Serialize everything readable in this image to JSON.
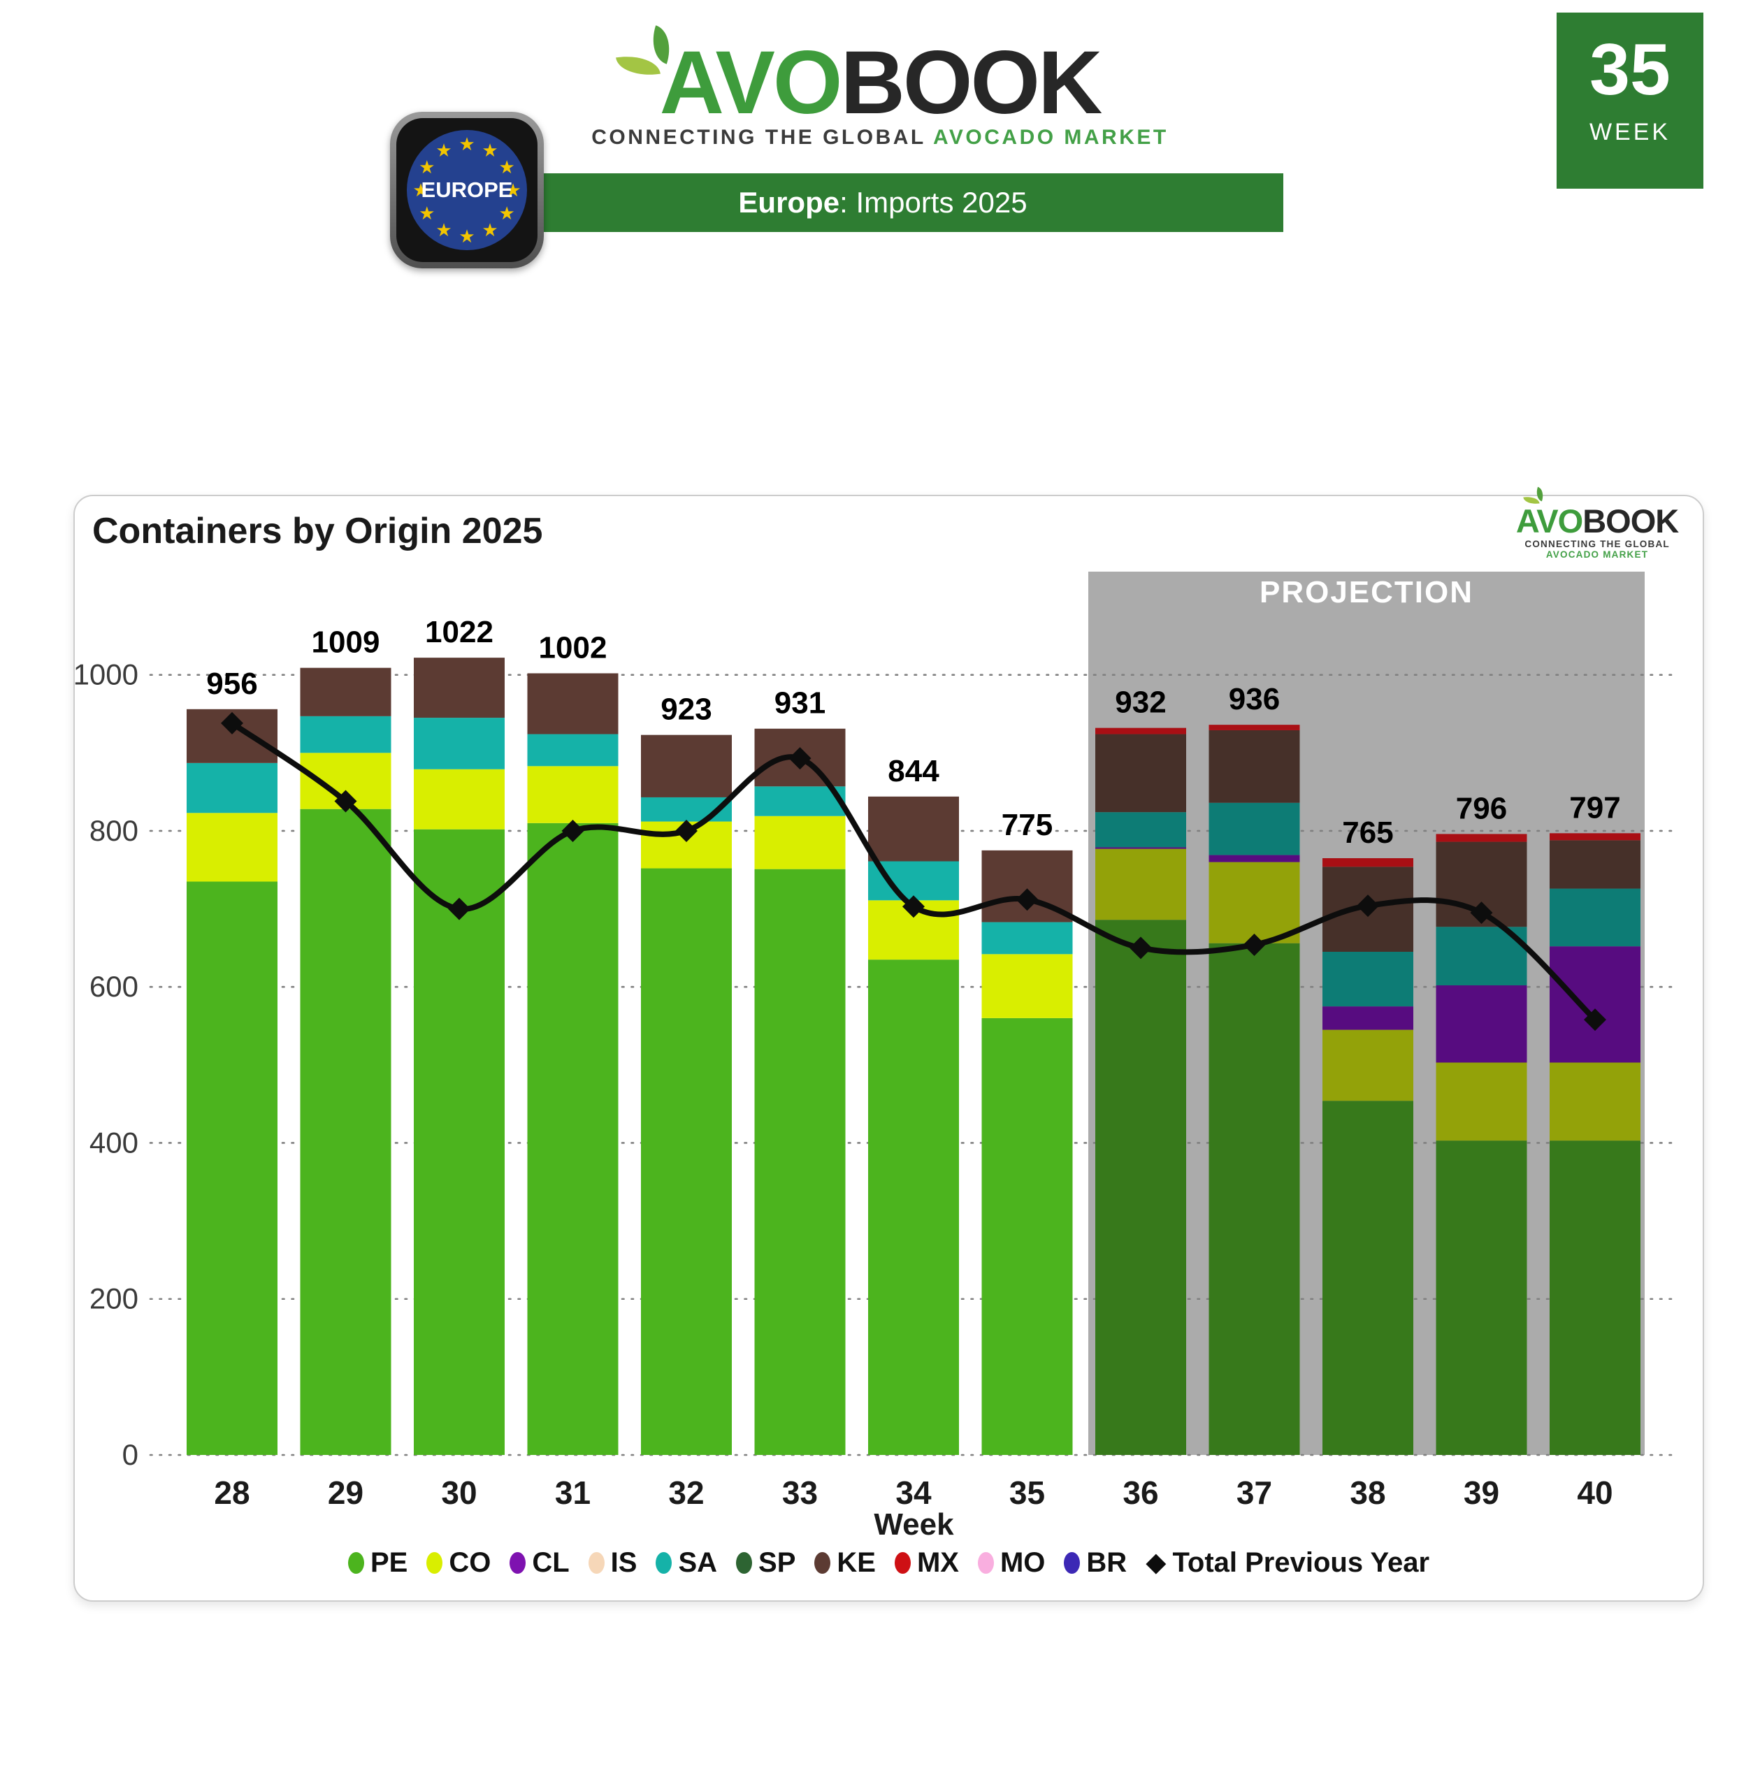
{
  "header": {
    "logo": {
      "avo": "AVO",
      "book": "BOOK",
      "tagline_dark": "CONNECTING THE GLOBAL",
      "tagline_green": "AVOCADO MARKET"
    },
    "banner": {
      "region": "Europe",
      "rest": ": Imports 2025"
    },
    "region_badge": "EUROPE",
    "week_badge": {
      "number": "35",
      "label": "WEEK"
    }
  },
  "card": {
    "title": "Containers by Origin 2025"
  },
  "chart_data": {
    "type": "bar",
    "stacked": true,
    "title": "Containers by Origin 2025",
    "xlabel": "Week",
    "ylabel": "",
    "ylim": [
      0,
      1100
    ],
    "yticks": [
      0,
      200,
      400,
      600,
      800,
      1000
    ],
    "grid": "dotted-horizontal",
    "legend_position": "bottom",
    "categories": [
      28,
      29,
      30,
      31,
      32,
      33,
      34,
      35,
      36,
      37,
      38,
      39,
      40
    ],
    "projection_weeks": [
      36,
      37,
      38,
      39,
      40
    ],
    "projection_label": "PROJECTION",
    "totals": [
      956,
      1009,
      1022,
      1002,
      923,
      931,
      844,
      775,
      932,
      936,
      765,
      796,
      797
    ],
    "stack_order": [
      "PE",
      "CO",
      "CL",
      "IS",
      "SA",
      "SP",
      "KE",
      "MX",
      "MO",
      "BR"
    ],
    "series": [
      {
        "name": "PE",
        "values": [
          735,
          828,
          802,
          810,
          752,
          751,
          635,
          560,
          686,
          656,
          454,
          403,
          403
        ]
      },
      {
        "name": "CO",
        "values": [
          88,
          72,
          77,
          73,
          60,
          68,
          76,
          82,
          91,
          104,
          91,
          100,
          100
        ]
      },
      {
        "name": "CL",
        "values": [
          0,
          0,
          0,
          0,
          0,
          0,
          0,
          0,
          2,
          9,
          30,
          99,
          149
        ]
      },
      {
        "name": "IS",
        "values": [
          0,
          0,
          0,
          0,
          0,
          0,
          0,
          0,
          0,
          0,
          0,
          0,
          0
        ]
      },
      {
        "name": "SA",
        "values": [
          64,
          47,
          66,
          41,
          31,
          38,
          50,
          41,
          45,
          67,
          70,
          75,
          74
        ]
      },
      {
        "name": "SP",
        "values": [
          0,
          0,
          0,
          0,
          0,
          0,
          0,
          0,
          0,
          0,
          0,
          0,
          0
        ]
      },
      {
        "name": "KE",
        "values": [
          69,
          62,
          77,
          78,
          80,
          74,
          83,
          92,
          100,
          93,
          109,
          109,
          62
        ]
      },
      {
        "name": "MX",
        "values": [
          0,
          0,
          0,
          0,
          0,
          0,
          0,
          0,
          8,
          7,
          11,
          10,
          9
        ]
      },
      {
        "name": "MO",
        "values": [
          0,
          0,
          0,
          0,
          0,
          0,
          0,
          0,
          0,
          0,
          0,
          0,
          0
        ]
      },
      {
        "name": "BR",
        "values": [
          0,
          0,
          0,
          0,
          0,
          0,
          0,
          0,
          0,
          0,
          0,
          0,
          0
        ]
      }
    ],
    "line": {
      "name": "Total Previous Year",
      "values": [
        938,
        838,
        700,
        800,
        800,
        893,
        703,
        712,
        650,
        654,
        704,
        695,
        558
      ],
      "color": "#0d0d0d",
      "marker": "diamond"
    },
    "colors": {
      "PE": "#4CB41E",
      "CO": "#D9EE00",
      "CL": "#7E12B0",
      "IS": "#F6D7B8",
      "SA": "#15B2A8",
      "SP": "#2D6432",
      "KE": "#5C3B33",
      "MX": "#CE1014",
      "MO": "#F9AEDF",
      "BR": "#3C28B5"
    },
    "colors_projection": {
      "PE": "#37791B",
      "CO": "#93A209",
      "CL": "#570C80",
      "IS": "#C7AE95",
      "SA": "#0D7C75",
      "SP": "#1F4722",
      "KE": "#463029",
      "MX": "#A90F14",
      "MO": "#C78DB2",
      "BR": "#2A1C80"
    },
    "projection_bg": "#ABABAB",
    "tick_color": "#3a3a3a",
    "grid_color": "#808080"
  }
}
